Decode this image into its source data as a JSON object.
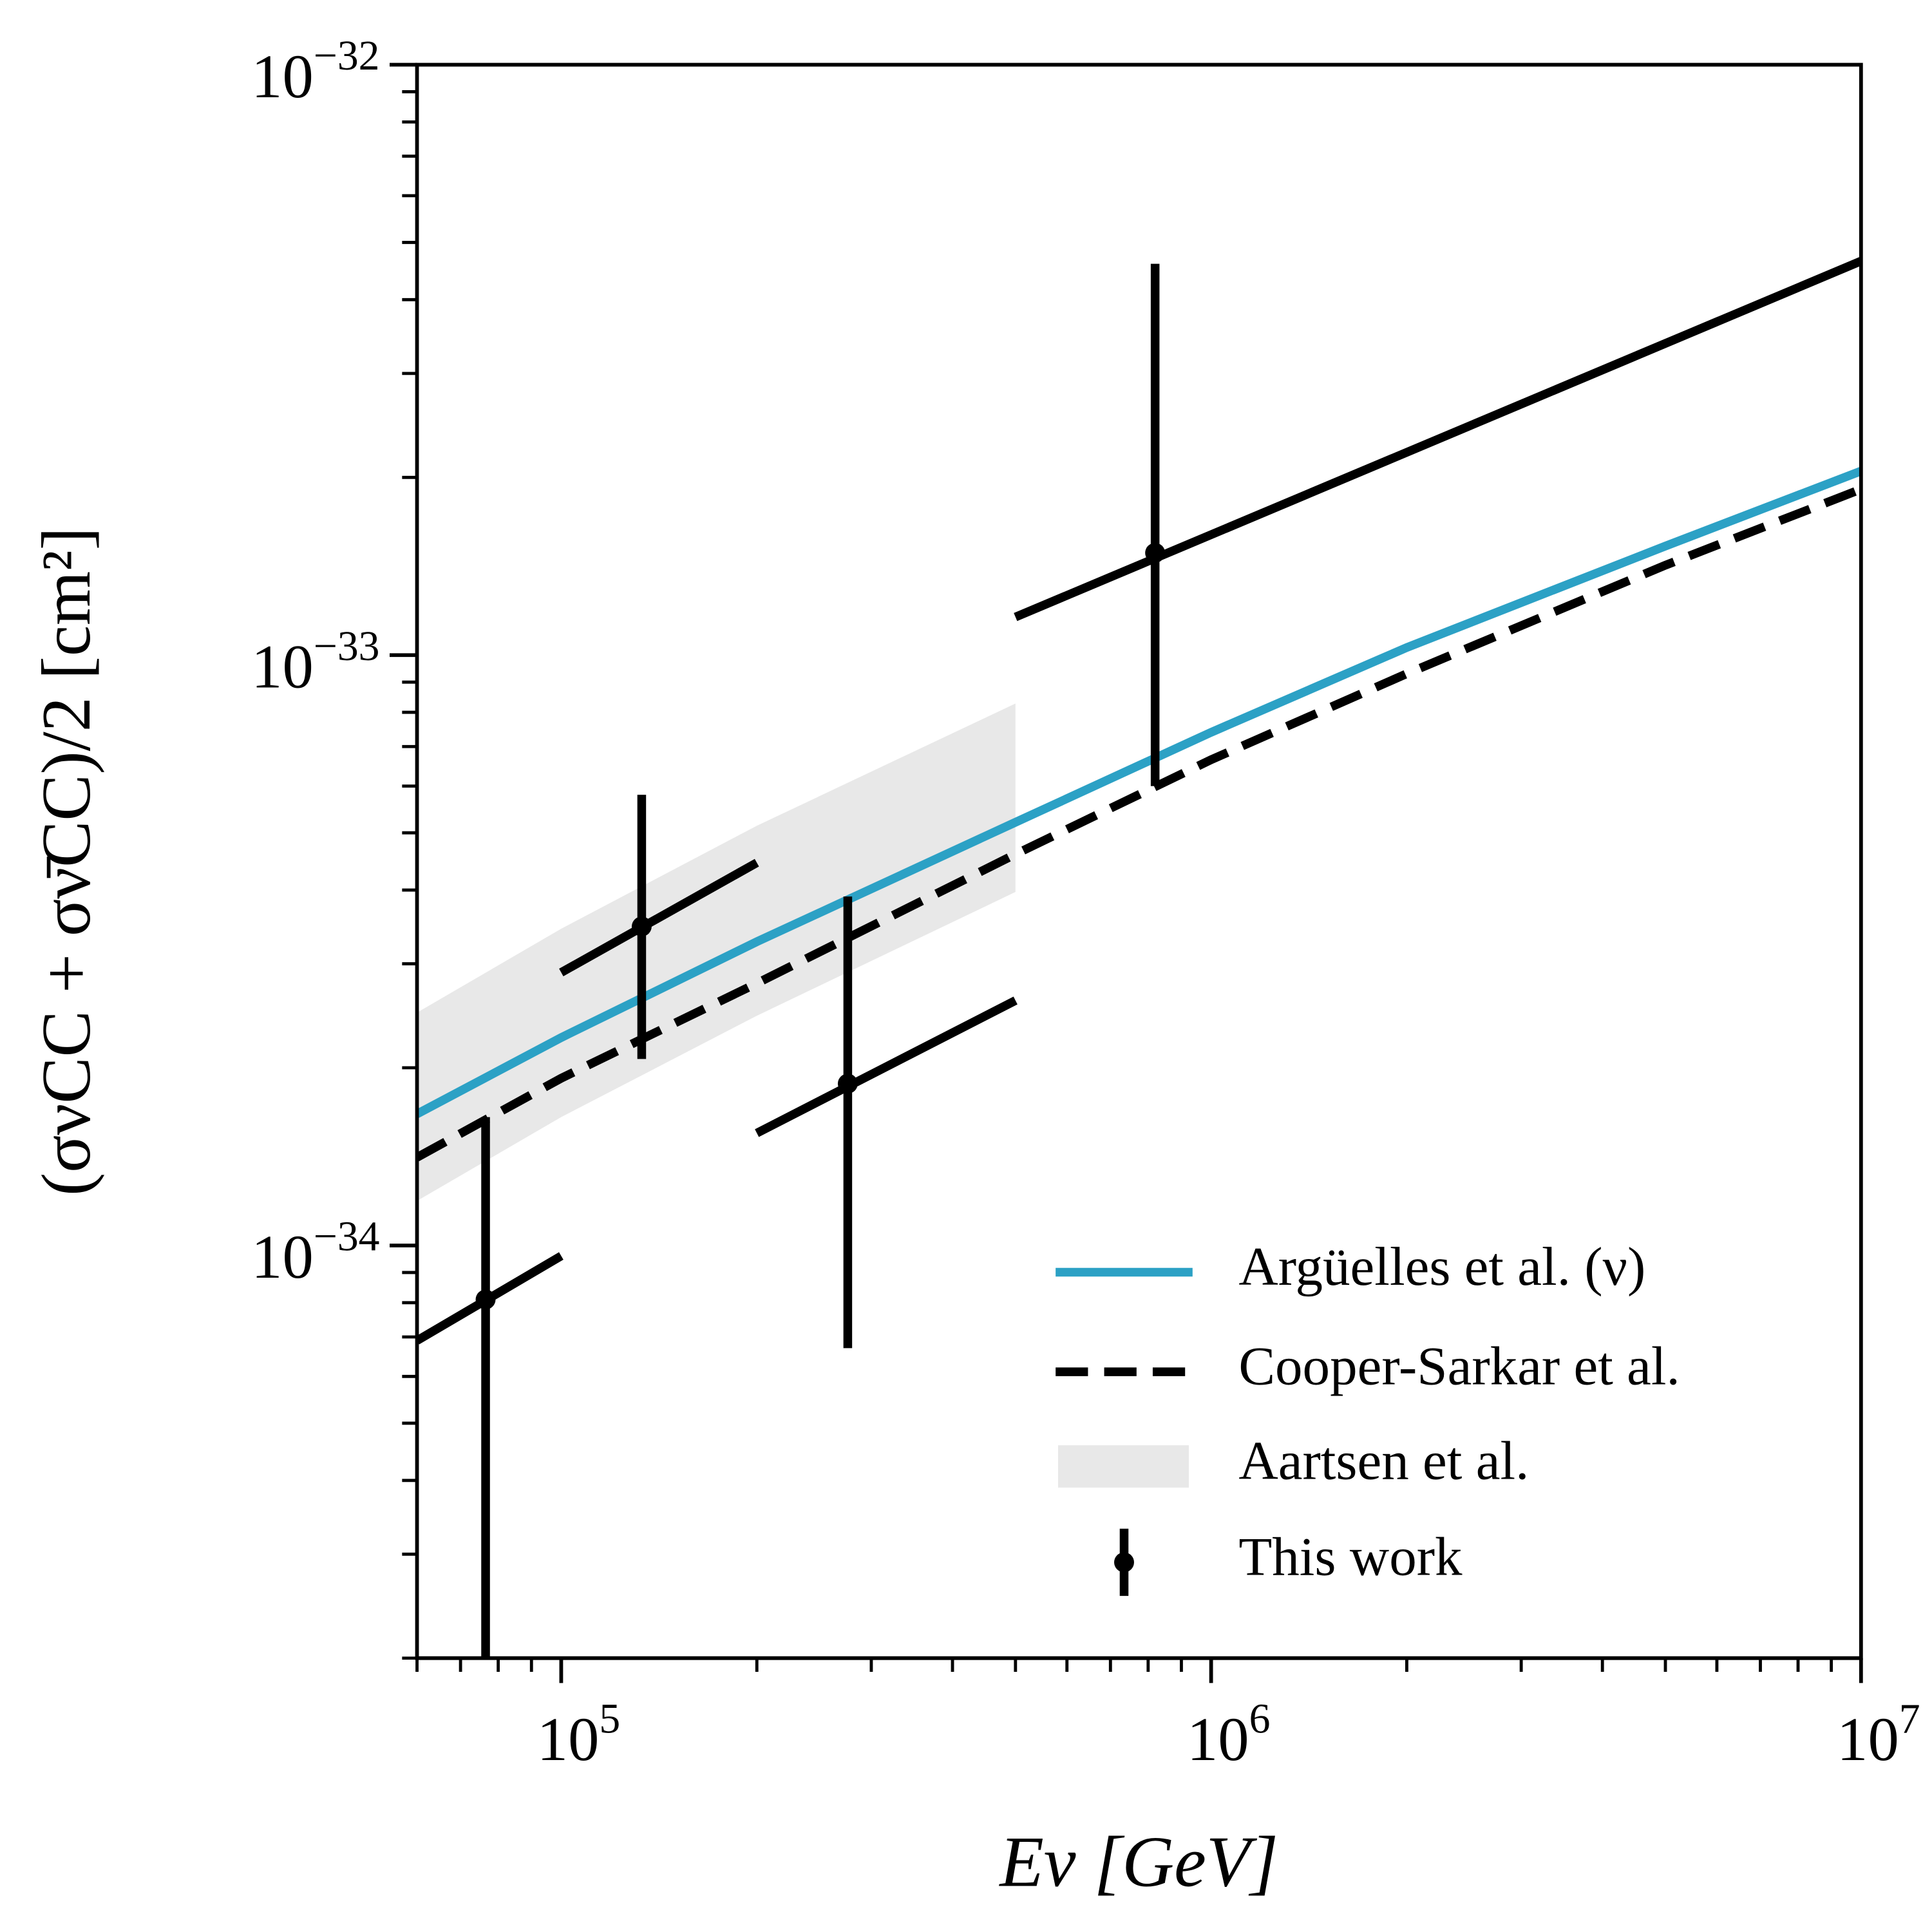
{
  "chart_data": {
    "type": "line",
    "xlabel": "Eν [GeV]",
    "ylabel": "(σνCC + σν̄CC)/2 [cm²]",
    "xscale": "log",
    "yscale": "log",
    "xlim": [
      60000,
      10000000
    ],
    "ylim": [
      2e-35,
      1e-32
    ],
    "xticks": [
      {
        "value": 100000,
        "label": "105"
      },
      {
        "value": 1000000,
        "label": "106"
      },
      {
        "value": 10000000,
        "label": "107"
      }
    ],
    "yticks": [
      {
        "value": 1e-34,
        "label": "10−34"
      },
      {
        "value": 1e-33,
        "label": "10−33"
      },
      {
        "value": 1e-32,
        "label": "10−32"
      }
    ],
    "xminor": [
      60000,
      70000,
      80000,
      90000,
      200000,
      300000,
      400000,
      500000,
      600000,
      700000,
      800000,
      900000,
      2000000,
      3000000,
      4000000,
      5000000,
      6000000,
      7000000,
      8000000,
      9000000
    ],
    "yminor": [
      2e-35,
      3e-35,
      4e-35,
      5e-35,
      6e-35,
      7e-35,
      8e-35,
      9e-35,
      2e-34,
      3e-34,
      4e-34,
      5e-34,
      6e-34,
      7e-34,
      8e-34,
      9e-34,
      2e-33,
      3e-33,
      4e-33,
      5e-33,
      6e-33,
      7e-33,
      8e-33,
      9e-33
    ],
    "legend": "lower right",
    "series": [
      {
        "name": "Argüelles et al. (ν)",
        "color": "#2ca1c5",
        "style": "solid",
        "x": [
          60000,
          100000,
          200000,
          500000,
          1000000,
          2000000,
          5000000,
          10000000
        ],
        "values": [
          1.67e-34,
          2.25e-34,
          3.27e-34,
          5.21e-34,
          7.4e-34,
          1.03e-33,
          1.53e-33,
          2.05e-33
        ]
      },
      {
        "name": "Cooper-Sarkar et al.",
        "color": "#000000",
        "style": "dashed",
        "x": [
          60000,
          100000,
          200000,
          500000,
          1000000,
          2000000,
          5000000,
          10000000
        ],
        "values": [
          1.41e-34,
          1.92e-34,
          2.78e-34,
          4.6e-34,
          6.65e-34,
          9.3e-34,
          1.42e-33,
          1.91e-33
        ]
      }
    ],
    "band": {
      "name": "Aartsen et al.",
      "color": "#e8e8e8",
      "x": [
        60000,
        100000,
        200000,
        500000
      ],
      "upper": [
        2.48e-34,
        3.44e-34,
        5.14e-34,
        8.28e-34
      ],
      "lower": [
        1.19e-34,
        1.65e-34,
        2.45e-34,
        3.97e-34
      ]
    },
    "points": {
      "name": "This work",
      "color": "#000000",
      "x": [
        76500,
        133000,
        276000,
        820000
      ],
      "values": [
        8.1e-35,
        3.47e-34,
        1.88e-34,
        1.49e-33
      ],
      "y_low": [
        2e-35,
        2.07e-34,
        6.7e-35,
        6e-34
      ],
      "y_high": [
        1.65e-34,
        5.8e-34,
        3.9e-34,
        4.6e-33
      ],
      "bin_x_start": [
        60000,
        100000,
        200000,
        500000
      ],
      "bin_x_end": [
        100000,
        200000,
        500000,
        10000000
      ],
      "bin_y_start": [
        6.9e-35,
        2.9e-34,
        1.55e-34,
        1.16e-33
      ],
      "bin_y_end": [
        9.6e-35,
        4.45e-34,
        2.6e-34,
        4.65e-33
      ]
    }
  }
}
